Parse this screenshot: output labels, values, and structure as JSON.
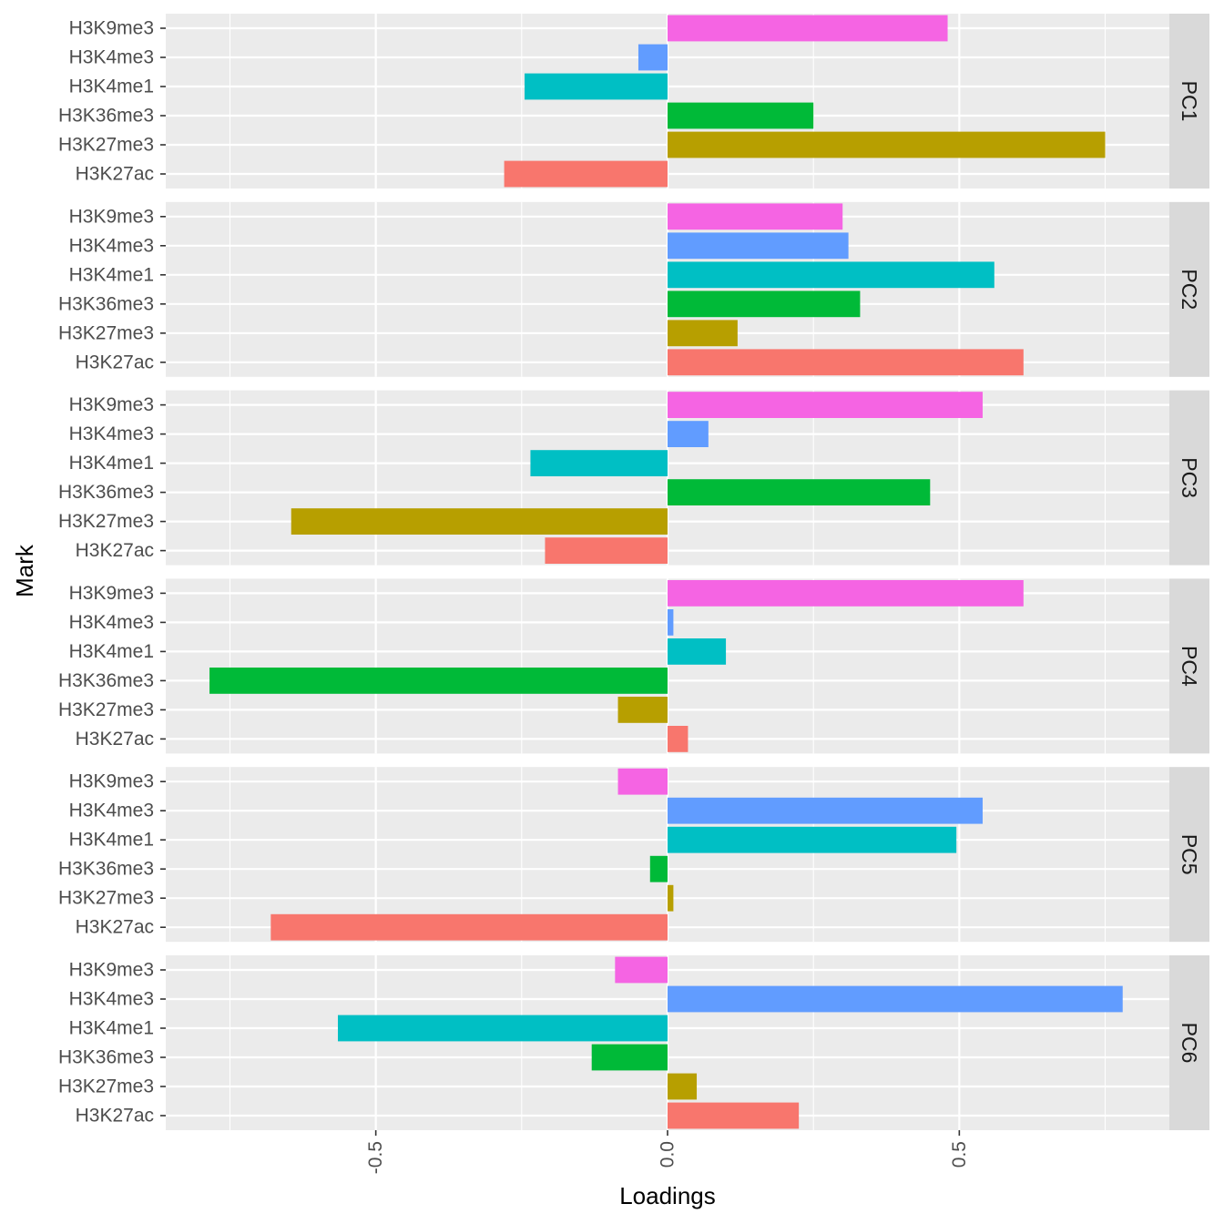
{
  "chart_data": {
    "type": "bar",
    "orientation": "horizontal",
    "xlabel": "Loadings",
    "ylabel": "Mark",
    "xlim": [
      -0.86,
      0.86
    ],
    "x_ticks": [
      -0.5,
      0.0,
      0.5
    ],
    "x_tick_labels": [
      "-0.5",
      "0.0",
      "0.5"
    ],
    "grid": true,
    "legend": "none",
    "categories": [
      "H3K9me3",
      "H3K4me3",
      "H3K4me1",
      "H3K36me3",
      "H3K27me3",
      "H3K27ac"
    ],
    "category_colors": [
      "#F564E3",
      "#619CFF",
      "#00BFC4",
      "#00BA38",
      "#B79F00",
      "#F8766D"
    ],
    "panels": [
      {
        "name": "PC1",
        "values": [
          0.48,
          -0.05,
          -0.245,
          0.25,
          0.75,
          -0.28
        ]
      },
      {
        "name": "PC2",
        "values": [
          0.3,
          0.31,
          0.56,
          0.33,
          0.12,
          0.61
        ]
      },
      {
        "name": "PC3",
        "values": [
          0.54,
          0.07,
          -0.235,
          0.45,
          -0.645,
          -0.21
        ]
      },
      {
        "name": "PC4",
        "values": [
          0.61,
          0.01,
          0.1,
          -0.785,
          -0.085,
          0.035
        ]
      },
      {
        "name": "PC5",
        "values": [
          -0.085,
          0.54,
          0.495,
          -0.03,
          0.01,
          -0.68
        ]
      },
      {
        "name": "PC6",
        "values": [
          -0.09,
          0.78,
          -0.565,
          -0.13,
          0.05,
          0.225
        ]
      }
    ]
  }
}
